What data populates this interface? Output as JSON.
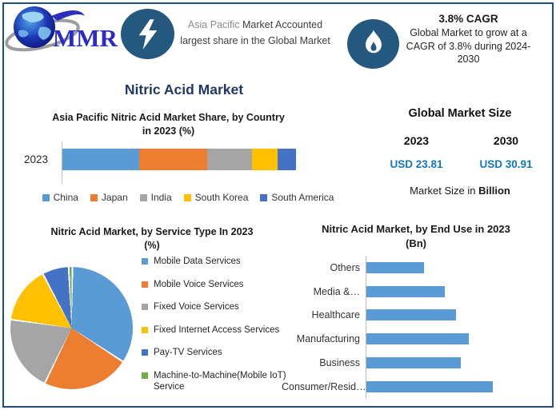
{
  "page": {
    "colors": {
      "frame_border": "#1F4E79",
      "badge_blue": "#24587F",
      "title_navy": "#1F3864",
      "value_blue": "#1279BE",
      "bar_blue": "#5B9BD5"
    }
  },
  "header": {
    "logo": {
      "text": "MMR"
    },
    "asia_highlight": {
      "icon": "lightning-bolt-icon",
      "highlight": "Asia Pacific",
      "rest": "Market Accounted largest share in the Global Market"
    },
    "cagr_highlight": {
      "icon": "flame-icon",
      "title": "3.8% CAGR",
      "body": "Global Market to grow at a CAGR of 3.8% during 2024-2030"
    }
  },
  "main_title": "Nitric Acid Market",
  "market_size": {
    "title": "Global Market Size",
    "col_2023": {
      "year": "2023",
      "value": "USD 23.81"
    },
    "col_2030": {
      "year": "2030",
      "value": "USD 30.91"
    },
    "footnote_regular": "Market Size in ",
    "footnote_bold": "Billion"
  },
  "chart_data": [
    {
      "type": "bar",
      "subtype": "stacked-horizontal",
      "title": "Asia Pacific Nitric Acid Market Share, by Country in 2023 (%)",
      "categories": [
        "2023"
      ],
      "series": [
        {
          "name": "China",
          "color": "#5B9BD5",
          "values": [
            33
          ]
        },
        {
          "name": "Japan",
          "color": "#ED7D31",
          "values": [
            29
          ]
        },
        {
          "name": "India",
          "color": "#A5A5A5",
          "values": [
            19
          ]
        },
        {
          "name": "South Korea",
          "color": "#FFC000",
          "values": [
            11
          ]
        },
        {
          "name": "South America",
          "color": "#4472C4",
          "values": [
            8
          ]
        }
      ],
      "xlim": [
        0,
        100
      ],
      "legend_position": "bottom",
      "grid": false
    },
    {
      "type": "pie",
      "title": "Nitric Acid Market, by Service Type In 2023 (%)",
      "labels": [
        "Mobile Data Services",
        "Mobile Voice Services",
        "Fixed Voice Services",
        "Fixed Internet Access Services",
        "Pay-TV Services",
        "Machine-to-Machine(Mobile IoT) Service"
      ],
      "values": [
        34,
        23,
        20,
        15,
        7,
        1
      ],
      "colors": [
        "#5B9BD5",
        "#ED7D31",
        "#A5A5A5",
        "#FFC000",
        "#4472C4",
        "#70AD47"
      ],
      "start_angle_deg": 0,
      "legend_position": "right"
    },
    {
      "type": "bar",
      "subtype": "horizontal",
      "title": "Nitric Acid Market, by End Use in 2023 (Bn)",
      "categories": [
        "Others",
        "Media &…",
        "Healthcare",
        "Manufacturing",
        "Business",
        "Consumer/Resid…"
      ],
      "values": [
        2.5,
        3.4,
        3.9,
        4.45,
        4.1,
        5.5
      ],
      "values_note": "estimated from bar lengths; no numeric axis shown",
      "bar_color": "#5B9BD5",
      "xlim": [
        0,
        8
      ],
      "grid": false
    }
  ]
}
